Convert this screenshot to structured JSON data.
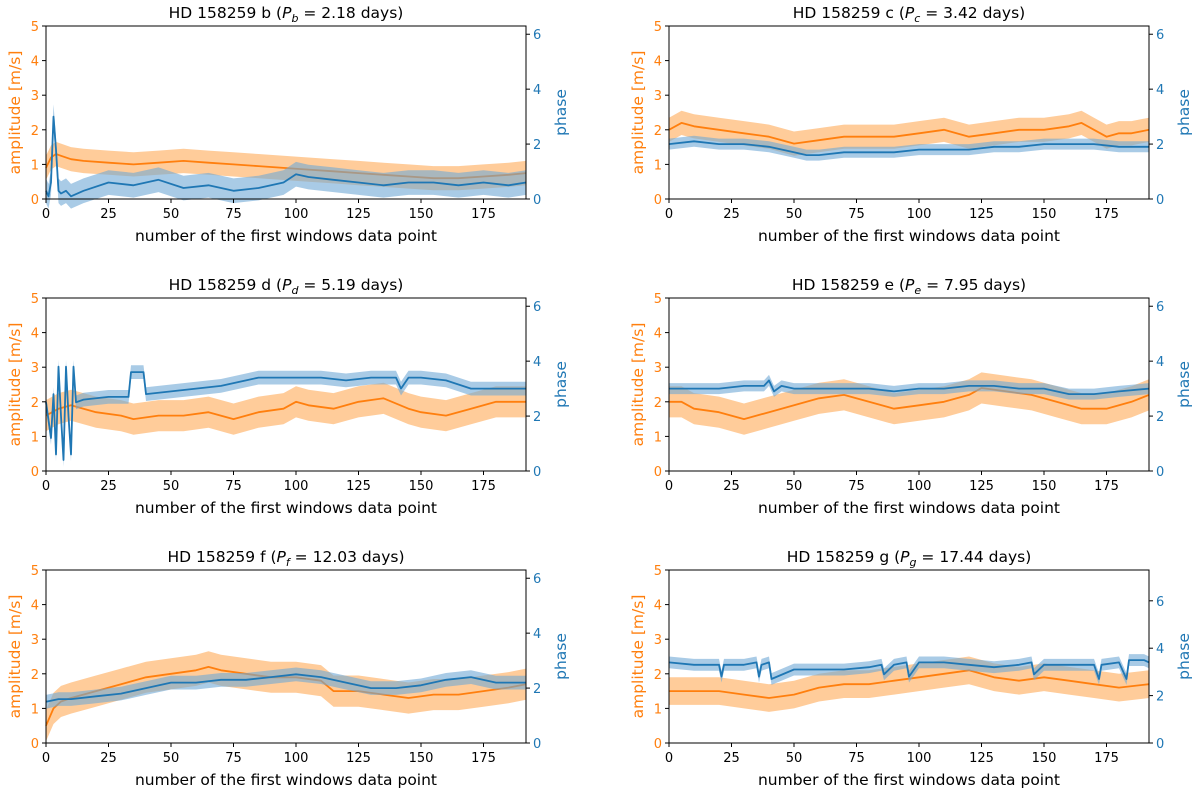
{
  "figure": {
    "colors": {
      "amplitude": "#ff7f0e",
      "amplitude_band": "#ffbb78",
      "phase": "#1f77b4",
      "phase_band": "#6fa8d6",
      "axis": "#000000"
    }
  },
  "chart_data": [
    {
      "type": "line",
      "title": "HD 158259 b (P_b = 2.18 days)",
      "title_parts": {
        "prefix": "HD 158259 b (",
        "P": "P",
        "sub": "b",
        "rest": " = 2.18 days)"
      },
      "xlabel": "number of the first windows data point",
      "ylabel_left": "amplitude [m/s]",
      "ylabel_right": "phase",
      "xlim": [
        0,
        192
      ],
      "ylim_left": [
        0,
        5
      ],
      "ylim_right": [
        0,
        6.3
      ],
      "xticks": [
        0,
        25,
        50,
        75,
        100,
        125,
        150,
        175
      ],
      "yticks_left": [
        0,
        1,
        2,
        3,
        4,
        5
      ],
      "yticks_right": [
        0,
        2,
        4,
        6
      ],
      "series": [
        {
          "name": "amplitude",
          "axis": "left",
          "x": [
            0,
            2,
            4,
            6,
            10,
            15,
            25,
            35,
            45,
            55,
            65,
            75,
            85,
            95,
            105,
            115,
            125,
            135,
            145,
            155,
            165,
            175,
            185,
            192
          ],
          "values": [
            0.9,
            1.2,
            1.3,
            1.25,
            1.15,
            1.1,
            1.05,
            1.0,
            1.05,
            1.1,
            1.05,
            1.0,
            0.95,
            0.9,
            0.85,
            0.8,
            0.75,
            0.7,
            0.65,
            0.6,
            0.6,
            0.65,
            0.7,
            0.75
          ],
          "band": 0.35
        },
        {
          "name": "phase",
          "axis": "right",
          "x": [
            0,
            1,
            2,
            3,
            4,
            5,
            6,
            8,
            10,
            15,
            25,
            35,
            45,
            55,
            65,
            75,
            85,
            95,
            100,
            105,
            115,
            125,
            135,
            145,
            155,
            165,
            175,
            185,
            192
          ],
          "values": [
            0.3,
            0.1,
            0.6,
            3.0,
            1.8,
            0.3,
            0.2,
            0.3,
            0.1,
            0.3,
            0.6,
            0.5,
            0.7,
            0.4,
            0.5,
            0.3,
            0.4,
            0.6,
            0.9,
            0.8,
            0.7,
            0.6,
            0.5,
            0.6,
            0.6,
            0.5,
            0.6,
            0.5,
            0.6
          ],
          "band": 0.45
        }
      ]
    },
    {
      "type": "line",
      "title": "HD 158259 c (P_c = 3.42 days)",
      "title_parts": {
        "prefix": "HD 158259 c (",
        "P": "P",
        "sub": "c",
        "rest": " = 3.42 days)"
      },
      "xlabel": "number of the first windows data point",
      "ylabel_left": "amplitude [m/s]",
      "ylabel_right": "phase",
      "xlim": [
        0,
        192
      ],
      "ylim_left": [
        0,
        5
      ],
      "ylim_right": [
        0,
        6.3
      ],
      "xticks": [
        0,
        25,
        50,
        75,
        100,
        125,
        150,
        175
      ],
      "yticks_left": [
        0,
        1,
        2,
        3,
        4,
        5
      ],
      "yticks_right": [
        0,
        2,
        4,
        6
      ],
      "series": [
        {
          "name": "amplitude",
          "axis": "left",
          "x": [
            0,
            5,
            10,
            20,
            30,
            40,
            50,
            60,
            70,
            80,
            90,
            100,
            110,
            120,
            130,
            140,
            150,
            160,
            165,
            170,
            175,
            180,
            185,
            192
          ],
          "values": [
            2.0,
            2.2,
            2.1,
            2.0,
            1.9,
            1.8,
            1.6,
            1.7,
            1.8,
            1.8,
            1.8,
            1.9,
            2.0,
            1.8,
            1.9,
            2.0,
            2.0,
            2.1,
            2.2,
            2.0,
            1.8,
            1.9,
            1.9,
            2.0
          ],
          "band": 0.35
        },
        {
          "name": "phase",
          "axis": "right",
          "x": [
            0,
            10,
            20,
            30,
            40,
            50,
            55,
            60,
            70,
            80,
            90,
            100,
            110,
            120,
            130,
            140,
            150,
            160,
            170,
            180,
            192
          ],
          "values": [
            2.0,
            2.1,
            2.0,
            2.0,
            1.9,
            1.7,
            1.6,
            1.6,
            1.7,
            1.7,
            1.7,
            1.8,
            1.8,
            1.8,
            1.9,
            1.9,
            2.0,
            2.0,
            2.0,
            1.9,
            1.9
          ],
          "band": 0.2
        }
      ]
    },
    {
      "type": "line",
      "title": "HD 158259 d (P_d = 5.19 days)",
      "title_parts": {
        "prefix": "HD 158259 d (",
        "P": "P",
        "sub": "d",
        "rest": " = 5.19 days)"
      },
      "xlabel": "number of the first windows data point",
      "ylabel_left": "amplitude [m/s]",
      "ylabel_right": "phase",
      "xlim": [
        0,
        192
      ],
      "ylim_left": [
        0,
        5
      ],
      "ylim_right": [
        0,
        6.3
      ],
      "xticks": [
        0,
        25,
        50,
        75,
        100,
        125,
        150,
        175
      ],
      "yticks_left": [
        0,
        1,
        2,
        3,
        4,
        5
      ],
      "yticks_right": [
        0,
        2,
        4,
        6
      ],
      "series": [
        {
          "name": "amplitude",
          "axis": "left",
          "x": [
            0,
            5,
            10,
            15,
            20,
            30,
            35,
            45,
            55,
            65,
            75,
            85,
            95,
            100,
            105,
            115,
            125,
            135,
            145,
            150,
            160,
            170,
            180,
            192
          ],
          "values": [
            1.6,
            1.8,
            1.9,
            1.8,
            1.7,
            1.6,
            1.5,
            1.6,
            1.6,
            1.7,
            1.5,
            1.7,
            1.8,
            2.0,
            1.9,
            1.8,
            2.0,
            2.1,
            1.8,
            1.7,
            1.6,
            1.8,
            2.0,
            2.0
          ],
          "band": 0.45
        },
        {
          "name": "phase",
          "axis": "right",
          "x": [
            0,
            2,
            3,
            4,
            5,
            6,
            7,
            8,
            9,
            10,
            11,
            12,
            15,
            25,
            33,
            34,
            36,
            38,
            39,
            40,
            50,
            60,
            70,
            75,
            80,
            85,
            90,
            100,
            110,
            120,
            130,
            140,
            142,
            145,
            150,
            160,
            170,
            180,
            192
          ],
          "values": [
            2.5,
            1.2,
            2.8,
            0.6,
            3.8,
            2.0,
            0.4,
            3.8,
            2.0,
            0.6,
            3.8,
            2.5,
            2.6,
            2.7,
            2.7,
            3.6,
            3.6,
            3.6,
            3.6,
            2.8,
            2.9,
            3.0,
            3.1,
            3.2,
            3.3,
            3.4,
            3.4,
            3.4,
            3.4,
            3.3,
            3.4,
            3.4,
            3.0,
            3.4,
            3.4,
            3.3,
            3.0,
            3.0,
            3.0
          ],
          "band": 0.25
        }
      ]
    },
    {
      "type": "line",
      "title": "HD 158259 e (P_e = 7.95 days)",
      "title_parts": {
        "prefix": "HD 158259 e (",
        "P": "P",
        "sub": "e",
        "rest": " = 7.95 days)"
      },
      "xlabel": "number of the first windows data point",
      "ylabel_left": "amplitude [m/s]",
      "ylabel_right": "phase",
      "xlim": [
        0,
        192
      ],
      "ylim_left": [
        0,
        5
      ],
      "ylim_right": [
        0,
        6.3
      ],
      "xticks": [
        0,
        25,
        50,
        75,
        100,
        125,
        150,
        175
      ],
      "yticks_left": [
        0,
        1,
        2,
        3,
        4,
        5
      ],
      "yticks_right": [
        0,
        2,
        4,
        6
      ],
      "series": [
        {
          "name": "amplitude",
          "axis": "left",
          "x": [
            0,
            5,
            10,
            20,
            30,
            40,
            50,
            60,
            70,
            80,
            90,
            100,
            110,
            120,
            125,
            135,
            145,
            155,
            165,
            175,
            185,
            192
          ],
          "values": [
            2.0,
            2.0,
            1.8,
            1.7,
            1.5,
            1.7,
            1.9,
            2.1,
            2.2,
            2.0,
            1.8,
            1.9,
            2.0,
            2.2,
            2.4,
            2.3,
            2.2,
            2.0,
            1.8,
            1.8,
            2.0,
            2.2
          ],
          "band": 0.45
        },
        {
          "name": "phase",
          "axis": "right",
          "x": [
            0,
            10,
            20,
            30,
            38,
            40,
            42,
            45,
            50,
            60,
            70,
            80,
            90,
            100,
            110,
            120,
            130,
            140,
            150,
            160,
            170,
            180,
            192
          ],
          "values": [
            3.0,
            3.0,
            3.0,
            3.1,
            3.1,
            3.3,
            2.9,
            3.1,
            3.0,
            3.0,
            3.0,
            3.0,
            2.9,
            3.0,
            3.0,
            3.1,
            3.1,
            3.0,
            3.0,
            2.8,
            2.8,
            2.9,
            3.0
          ],
          "band": 0.2
        }
      ]
    },
    {
      "type": "line",
      "title": "HD 158259 f (P_f = 12.03 days)",
      "title_parts": {
        "prefix": "HD 158259 f (",
        "P": "P",
        "sub": "f",
        "rest": " = 12.03 days)"
      },
      "xlabel": "number of the first windows data point",
      "ylabel_left": "amplitude [m/s]",
      "ylabel_right": "phase",
      "xlim": [
        0,
        192
      ],
      "ylim_left": [
        0,
        5
      ],
      "ylim_right": [
        0,
        6.3
      ],
      "xticks": [
        0,
        25,
        50,
        75,
        100,
        125,
        150,
        175
      ],
      "yticks_left": [
        0,
        1,
        2,
        3,
        4,
        5
      ],
      "yticks_right": [
        0,
        2,
        4,
        6
      ],
      "series": [
        {
          "name": "amplitude",
          "axis": "left",
          "x": [
            0,
            3,
            6,
            10,
            20,
            30,
            40,
            50,
            60,
            65,
            70,
            80,
            90,
            100,
            110,
            115,
            125,
            135,
            145,
            155,
            165,
            175,
            185,
            192
          ],
          "values": [
            0.5,
            1.0,
            1.2,
            1.3,
            1.5,
            1.7,
            1.9,
            2.0,
            2.1,
            2.2,
            2.1,
            2.0,
            1.9,
            1.9,
            1.8,
            1.5,
            1.5,
            1.4,
            1.3,
            1.4,
            1.4,
            1.5,
            1.6,
            1.7
          ],
          "band": 0.45
        },
        {
          "name": "phase",
          "axis": "right",
          "x": [
            0,
            5,
            10,
            20,
            30,
            40,
            50,
            60,
            70,
            80,
            90,
            100,
            110,
            120,
            130,
            140,
            150,
            160,
            170,
            180,
            192
          ],
          "values": [
            1.5,
            1.6,
            1.6,
            1.7,
            1.8,
            2.0,
            2.2,
            2.2,
            2.3,
            2.3,
            2.4,
            2.5,
            2.4,
            2.2,
            2.0,
            2.0,
            2.1,
            2.3,
            2.4,
            2.2,
            2.2
          ],
          "band": 0.25
        }
      ]
    },
    {
      "type": "line",
      "title": "HD 158259 g (P_g = 17.44 days)",
      "title_parts": {
        "prefix": "HD 158259 g (",
        "P": "P",
        "sub": "g",
        "rest": " = 17.44 days)"
      },
      "xlabel": "number of the first windows data point",
      "ylabel_left": "amplitude [m/s]",
      "ylabel_right": "phase",
      "xlim": [
        0,
        192
      ],
      "ylim_left": [
        0,
        5
      ],
      "ylim_right": [
        0,
        7.3
      ],
      "xticks": [
        0,
        25,
        50,
        75,
        100,
        125,
        150,
        175
      ],
      "yticks_left": [
        0,
        1,
        2,
        3,
        4,
        5
      ],
      "yticks_right": [
        0,
        2,
        4,
        6
      ],
      "series": [
        {
          "name": "amplitude",
          "axis": "left",
          "x": [
            0,
            10,
            20,
            30,
            40,
            50,
            60,
            70,
            80,
            90,
            100,
            110,
            120,
            130,
            140,
            150,
            160,
            170,
            180,
            192
          ],
          "values": [
            1.5,
            1.5,
            1.5,
            1.4,
            1.3,
            1.4,
            1.6,
            1.7,
            1.7,
            1.8,
            1.9,
            2.0,
            2.1,
            1.9,
            1.8,
            1.9,
            1.8,
            1.7,
            1.6,
            1.7
          ],
          "band": 0.4
        },
        {
          "name": "phase",
          "axis": "right",
          "x": [
            0,
            10,
            20,
            21,
            22,
            30,
            35,
            36,
            37,
            40,
            41,
            50,
            60,
            70,
            80,
            85,
            86,
            90,
            95,
            96,
            100,
            110,
            120,
            130,
            140,
            145,
            146,
            150,
            160,
            170,
            172,
            173,
            180,
            183,
            184,
            190,
            192
          ],
          "values": [
            3.4,
            3.3,
            3.3,
            2.8,
            3.3,
            3.3,
            3.4,
            2.8,
            3.3,
            3.4,
            2.7,
            3.1,
            3.1,
            3.1,
            3.2,
            3.3,
            2.9,
            3.3,
            3.4,
            2.8,
            3.4,
            3.4,
            3.3,
            3.2,
            3.3,
            3.4,
            2.9,
            3.3,
            3.3,
            3.3,
            2.7,
            3.3,
            3.4,
            2.7,
            3.5,
            3.5,
            3.4
          ],
          "band": 0.25
        }
      ]
    }
  ]
}
